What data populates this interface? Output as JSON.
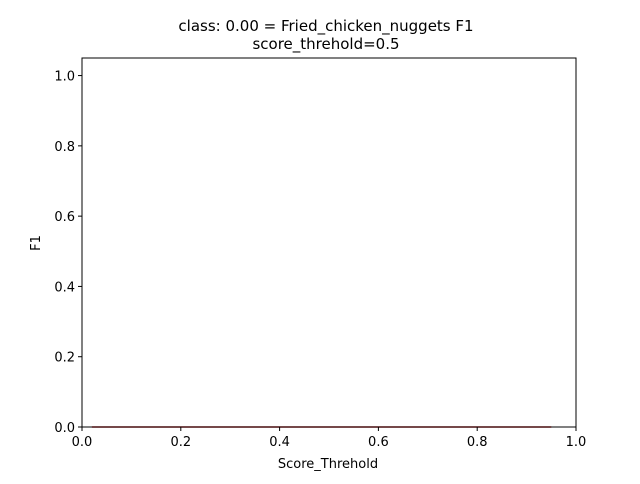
{
  "chart_data": {
    "type": "line",
    "title_line1": "class: 0.00 = Fried_chicken_nuggets F1",
    "title_line2": "score_threhold=0.5",
    "xlabel": "Score_Threhold",
    "ylabel": "F1",
    "xlim": [
      0.0,
      1.0
    ],
    "ylim": [
      0.0,
      1.05
    ],
    "x_ticks": [
      "0.0",
      "0.2",
      "0.4",
      "0.6",
      "0.8",
      "1.0"
    ],
    "y_ticks": [
      "0.0",
      "0.2",
      "0.4",
      "0.6",
      "0.8",
      "1.0"
    ],
    "grid": false,
    "series": [
      {
        "x": [
          0.02,
          0.95
        ],
        "y": [
          0.0,
          0.0
        ],
        "color": "#d62728"
      }
    ],
    "axis_color": "#000000"
  }
}
